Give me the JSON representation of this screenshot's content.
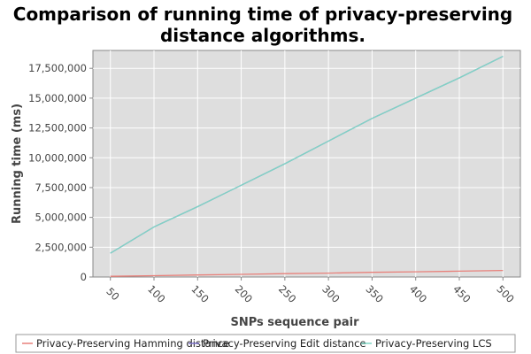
{
  "chart_data": {
    "type": "line",
    "title_lines": [
      "Comparison of running time of privacy-preserving",
      "distance algorithms."
    ],
    "xlabel": "SNPs sequence pair",
    "ylabel": "Running time (ms)",
    "x": [
      50,
      100,
      150,
      200,
      250,
      300,
      350,
      400,
      450,
      500
    ],
    "x_tick_labels": [
      "50",
      "100",
      "150",
      "200",
      "250",
      "300",
      "350",
      "400",
      "450",
      "500"
    ],
    "xlim": [
      30,
      520
    ],
    "ylim": [
      0,
      19000000
    ],
    "y_ticks": [
      0,
      2500000,
      5000000,
      7500000,
      10000000,
      12500000,
      15000000,
      17500000
    ],
    "y_tick_labels": [
      "0",
      "2,500,000",
      "5,000,000",
      "7,500,000",
      "10,000,000",
      "12,500,000",
      "15,000,000",
      "17,500,000"
    ],
    "grid": true,
    "legend_position": "bottom",
    "plot_background": "#dedede",
    "gridline_color": "#ffffff",
    "series": [
      {
        "name": "Privacy-Preserving Hamming distance",
        "color": "#e8807a",
        "values": [
          60000,
          110000,
          170000,
          220000,
          280000,
          330000,
          390000,
          440000,
          490000,
          550000
        ]
      },
      {
        "name": "Privacy-Preserving Edit distance",
        "color": "#7b70c8",
        "values": [
          2000000,
          4200000,
          5900000,
          7700000,
          9500000,
          11400000,
          13300000,
          15000000,
          16700000,
          18500000
        ]
      },
      {
        "name": "Privacy-Preserving LCS",
        "color": "#7fd6c4",
        "values": [
          2000000,
          4200000,
          5900000,
          7700000,
          9500000,
          11400000,
          13300000,
          15000000,
          16700000,
          18500000
        ]
      }
    ]
  }
}
